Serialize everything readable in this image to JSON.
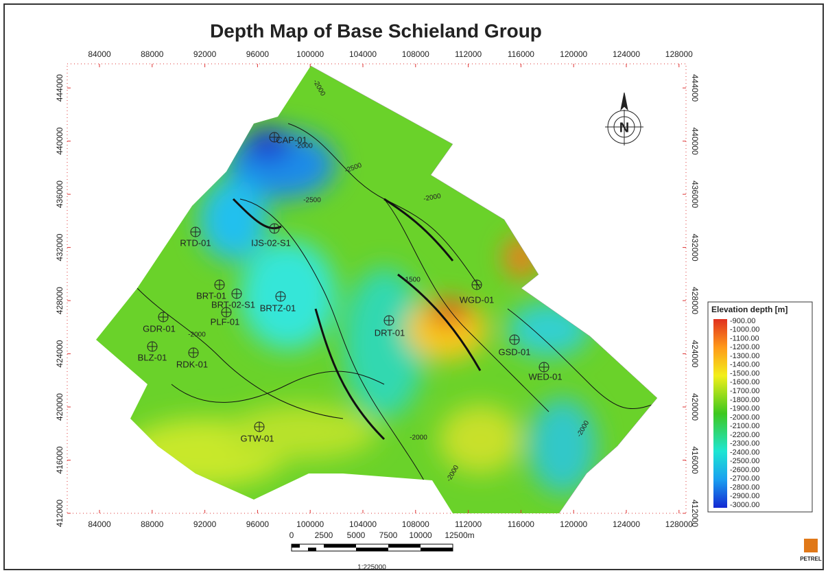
{
  "title": "Depth Map of Base Schieland Group",
  "axes": {
    "x_ticks": [
      84000,
      88000,
      92000,
      96000,
      100000,
      104000,
      108000,
      112000,
      116000,
      120000,
      124000,
      128000
    ],
    "y_ticks": [
      412000,
      416000,
      420000,
      424000,
      428000,
      432000,
      436000,
      440000,
      444000
    ]
  },
  "wells": [
    {
      "label": "CAP-01"
    },
    {
      "label": "RTD-01"
    },
    {
      "label": "IJS-02-S1"
    },
    {
      "label": "BRT-01"
    },
    {
      "label": "BRT-02-S1"
    },
    {
      "label": "BRTZ-01"
    },
    {
      "label": "PLF-01"
    },
    {
      "label": "GDR-01"
    },
    {
      "label": "BLZ-01"
    },
    {
      "label": "RDK-01"
    },
    {
      "label": "DRT-01"
    },
    {
      "label": "WGD-01"
    },
    {
      "label": "GSD-01"
    },
    {
      "label": "WED-01"
    },
    {
      "label": "GTW-01"
    }
  ],
  "contour_labels": [
    "-2000",
    "-2000",
    "-2500",
    "-2500",
    "-2000",
    "-1500",
    "-2000",
    "-2000",
    "-2000",
    "-2000"
  ],
  "legend": {
    "title": "Elevation depth [m]",
    "labels": [
      "-900.00",
      "-1000.00",
      "-1100.00",
      "-1200.00",
      "-1300.00",
      "-1400.00",
      "-1500.00",
      "-1600.00",
      "-1700.00",
      "-1800.00",
      "-1900.00",
      "-2000.00",
      "-2100.00",
      "-2200.00",
      "-2300.00",
      "-2400.00",
      "-2500.00",
      "-2600.00",
      "-2700.00",
      "-2800.00",
      "-2900.00",
      "-3000.00"
    ]
  },
  "scale_bar": {
    "labels": [
      "0",
      "2500",
      "5000",
      "7500",
      "10000",
      "12500m"
    ],
    "ratio": "1:225000"
  },
  "logo": "PETREL"
}
